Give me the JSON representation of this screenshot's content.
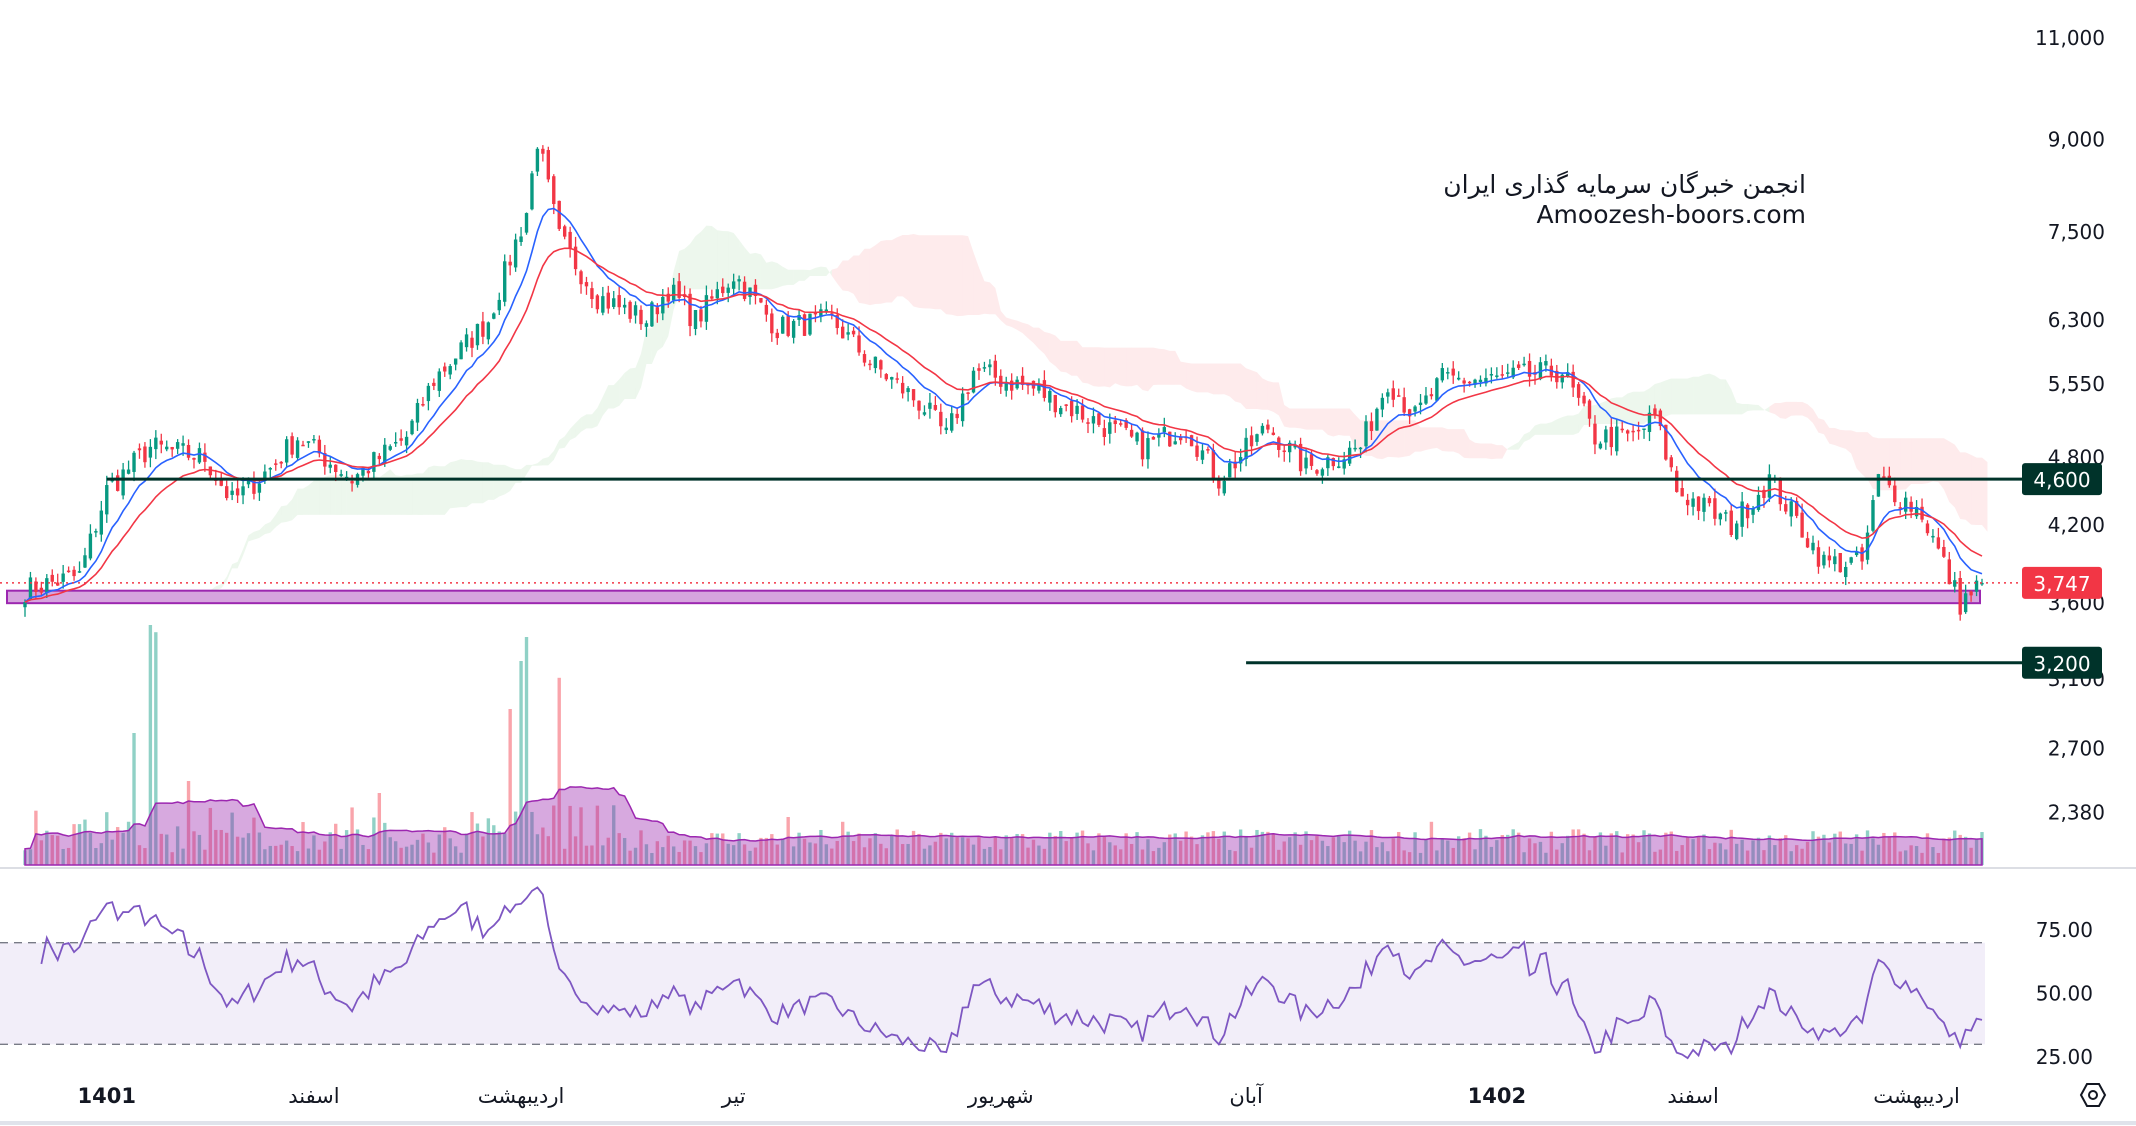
{
  "watermark": {
    "line1": "انجمن خبرگان سرمایه گذاری ایران",
    "line2": "Amoozesh-boors.com"
  },
  "chart_data": {
    "type": "candlestick",
    "price_scale": "log",
    "price_ticks": [
      "11,000",
      "9,000",
      "7,500",
      "6,300",
      "5,550",
      "4,800",
      "4,200",
      "3,600",
      "3,100",
      "2,700",
      "2,380"
    ],
    "price_tick_values": [
      11000,
      9000,
      7500,
      6300,
      5550,
      4800,
      4200,
      3600,
      3100,
      2700,
      2380
    ],
    "time_labels": [
      {
        "label": "1401",
        "bar": 15,
        "bold": true
      },
      {
        "label": "اسفند",
        "bar": 53
      },
      {
        "label": "اردیبهشت",
        "bar": 91
      },
      {
        "label": "تیر",
        "bar": 130
      },
      {
        "label": "شهریور",
        "bar": 179
      },
      {
        "label": "آبان",
        "bar": 224
      },
      {
        "label": "1402",
        "bar": 270,
        "bold": true
      },
      {
        "label": "اسفند",
        "bar": 306
      },
      {
        "label": "اردیبهشت",
        "bar": 347
      }
    ],
    "close_keypoints": [
      [
        0,
        3700
      ],
      [
        10,
        3800
      ],
      [
        15,
        4500
      ],
      [
        23,
        4900
      ],
      [
        33,
        4800
      ],
      [
        38,
        4400
      ],
      [
        45,
        4700
      ],
      [
        50,
        5000
      ],
      [
        60,
        4600
      ],
      [
        70,
        5000
      ],
      [
        75,
        5600
      ],
      [
        85,
        6300
      ],
      [
        92,
        7800
      ],
      [
        94,
        9000
      ],
      [
        98,
        7400
      ],
      [
        105,
        6600
      ],
      [
        114,
        6300
      ],
      [
        118,
        6700
      ],
      [
        123,
        6300
      ],
      [
        130,
        6900
      ],
      [
        138,
        6200
      ],
      [
        148,
        6300
      ],
      [
        155,
        5800
      ],
      [
        165,
        5300
      ],
      [
        169,
        5000
      ],
      [
        174,
        5700
      ],
      [
        185,
        5500
      ],
      [
        195,
        5200
      ],
      [
        205,
        4900
      ],
      [
        213,
        5100
      ],
      [
        219,
        4600
      ],
      [
        228,
        5100
      ],
      [
        235,
        4700
      ],
      [
        245,
        4900
      ],
      [
        250,
        5600
      ],
      [
        255,
        5200
      ],
      [
        260,
        5600
      ],
      [
        270,
        5600
      ],
      [
        282,
        5700
      ],
      [
        288,
        5000
      ],
      [
        295,
        5000
      ],
      [
        299,
        5200
      ],
      [
        303,
        4500
      ],
      [
        313,
        4200
      ],
      [
        320,
        4600
      ],
      [
        330,
        3900
      ],
      [
        337,
        3900
      ],
      [
        340,
        4600
      ],
      [
        348,
        4300
      ],
      [
        355,
        3600
      ],
      [
        359,
        3747
      ]
    ],
    "bars": 360,
    "horizontal_levels": [
      {
        "price": 4600,
        "label": "4,600",
        "color": "#00332a",
        "from_bar": 15
      },
      {
        "price": 3200,
        "label": "3,200",
        "color": "#00332a",
        "from_bar": 224
      }
    ],
    "last_price": {
      "price": 3747,
      "label": "3,747",
      "color": "#F23645"
    },
    "support_zone": {
      "low": 3600,
      "high": 3690,
      "color": "#9c27b0"
    },
    "moving_averages": [
      {
        "name": "EMA fast",
        "period": 10,
        "color": "#2962FF"
      },
      {
        "name": "EMA slow",
        "period": 20,
        "color": "#F23645"
      }
    ],
    "volume": {
      "spike_bars": [
        [
          20,
          0.55
        ],
        [
          23,
          0.9
        ],
        [
          24,
          0.97
        ],
        [
          30,
          0.35
        ],
        [
          65,
          0.3
        ],
        [
          89,
          0.55
        ],
        [
          91,
          0.85
        ],
        [
          92,
          0.95
        ],
        [
          98,
          0.78
        ],
        [
          140,
          0.2
        ],
        [
          150,
          0.18
        ],
        [
          258,
          0.18
        ]
      ]
    },
    "rsi": {
      "period": 14,
      "ticks": [
        "75.00",
        "50.00",
        "25.00"
      ],
      "tick_values": [
        75,
        50,
        25
      ],
      "upper": 70,
      "lower": 30
    },
    "colors": {
      "up": "#089981",
      "down": "#F23645"
    }
  }
}
